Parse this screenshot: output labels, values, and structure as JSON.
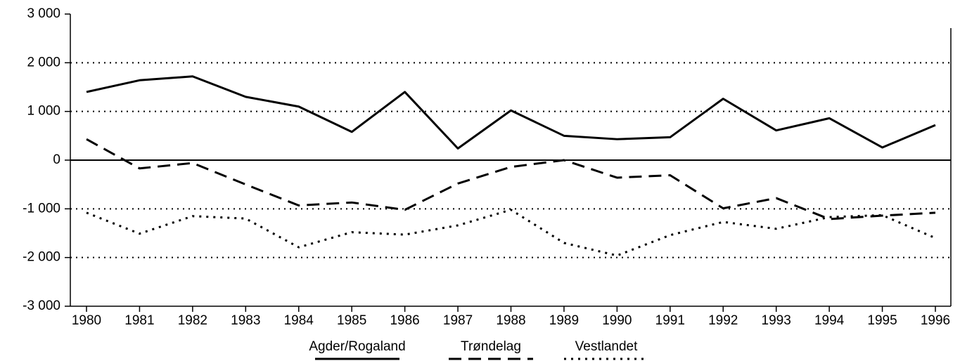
{
  "chart_data": {
    "type": "line",
    "categories": [
      "1980",
      "1981",
      "1982",
      "1983",
      "1984",
      "1985",
      "1986",
      "1987",
      "1988",
      "1989",
      "1990",
      "1991",
      "1992",
      "1993",
      "1994",
      "1995",
      "1996"
    ],
    "series": [
      {
        "name": "Agder/Rogaland",
        "color": "#000000",
        "line_style": "solid",
        "values": [
          1400,
          1640,
          1720,
          1300,
          1100,
          580,
          1400,
          240,
          1020,
          500,
          430,
          470,
          1260,
          610,
          860,
          260,
          720
        ]
      },
      {
        "name": "Trøndelag",
        "color": "#000000",
        "line_style": "dashed",
        "values": [
          430,
          -170,
          -60,
          -500,
          -930,
          -870,
          -1020,
          -480,
          -140,
          0,
          -360,
          -310,
          -990,
          -780,
          -1210,
          -1140,
          -1080
        ]
      },
      {
        "name": "Vestlandet",
        "color": "#000000",
        "line_style": "dotted",
        "values": [
          -1080,
          -1510,
          -1150,
          -1200,
          -1790,
          -1480,
          -1530,
          -1340,
          -1020,
          -1700,
          -1960,
          -1540,
          -1270,
          -1410,
          -1170,
          -1130,
          -1600
        ]
      }
    ],
    "ylim": [
      -3000,
      3000
    ],
    "yticks": [
      {
        "value": -3000,
        "label": "-3 000"
      },
      {
        "value": -2000,
        "label": "-2 000"
      },
      {
        "value": -1000,
        "label": "-1 000"
      },
      0,
      {
        "value": 1000,
        "label": "1 000"
      },
      {
        "value": 2000,
        "label": "2 000"
      },
      {
        "value": 3000,
        "label": "3 000"
      }
    ],
    "grid": true,
    "legend": "bottom"
  }
}
